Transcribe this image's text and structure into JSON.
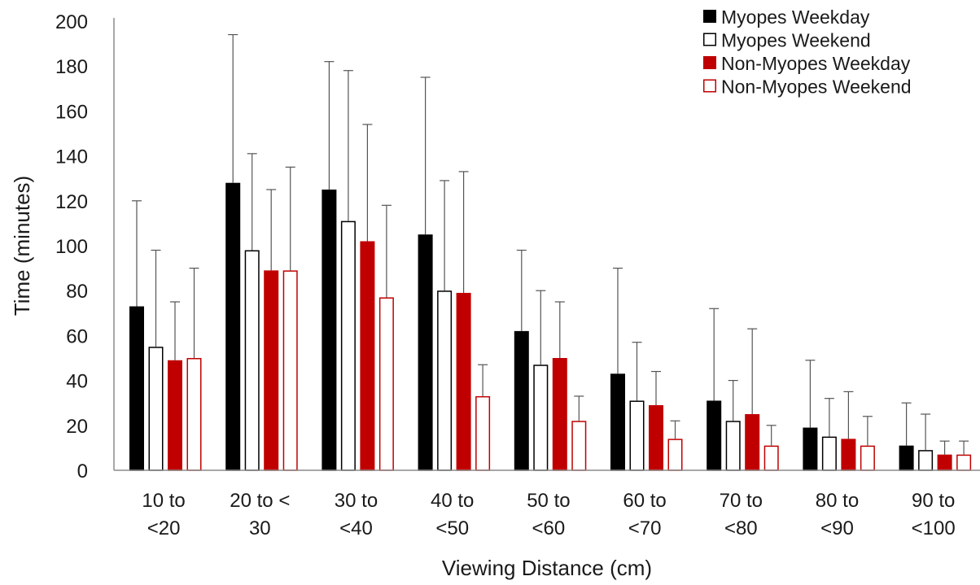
{
  "chart_data": {
    "type": "bar",
    "title": "",
    "xlabel": "Viewing Distance (cm)",
    "ylabel": "Time (minutes)",
    "ylim": [
      0,
      200
    ],
    "yticks": [
      0,
      20,
      40,
      60,
      80,
      100,
      120,
      140,
      160,
      180,
      200
    ],
    "grid": false,
    "legend_position": "top-right",
    "error_bars": "upper",
    "categories": [
      [
        "10 to",
        "<20"
      ],
      [
        "20 to <",
        "30"
      ],
      [
        "30 to",
        "<40"
      ],
      [
        "40 to",
        "<50"
      ],
      [
        "50 to",
        "<60"
      ],
      [
        "60 to",
        "<70"
      ],
      [
        "70 to",
        "<80"
      ],
      [
        "80 to",
        "<90"
      ],
      [
        "90 to",
        "<100"
      ]
    ],
    "series": [
      {
        "name": "Myopes Weekday",
        "fill": "#000000",
        "stroke": "#000000",
        "values": [
          73,
          128,
          125,
          105,
          62,
          43,
          31,
          19,
          11
        ],
        "errors": [
          47,
          66,
          57,
          70,
          36,
          47,
          41,
          30,
          19
        ]
      },
      {
        "name": "Myopes Weekend",
        "fill": "#ffffff",
        "stroke": "#000000",
        "values": [
          55,
          98,
          111,
          80,
          47,
          31,
          22,
          15,
          9
        ],
        "errors": [
          43,
          43,
          67,
          49,
          33,
          26,
          18,
          17,
          16
        ]
      },
      {
        "name": "Non-Myopes Weekday",
        "fill": "#c00000",
        "stroke": "#c00000",
        "values": [
          49,
          89,
          102,
          79,
          50,
          29,
          25,
          14,
          7
        ],
        "errors": [
          26,
          36,
          52,
          54,
          25,
          15,
          38,
          21,
          6
        ]
      },
      {
        "name": "Non-Myopes Weekend",
        "fill": "#ffffff",
        "stroke": "#c00000",
        "values": [
          50,
          89,
          77,
          33,
          22,
          14,
          11,
          11,
          7
        ],
        "errors": [
          40,
          46,
          41,
          14,
          11,
          8,
          9,
          13,
          6
        ]
      }
    ]
  }
}
